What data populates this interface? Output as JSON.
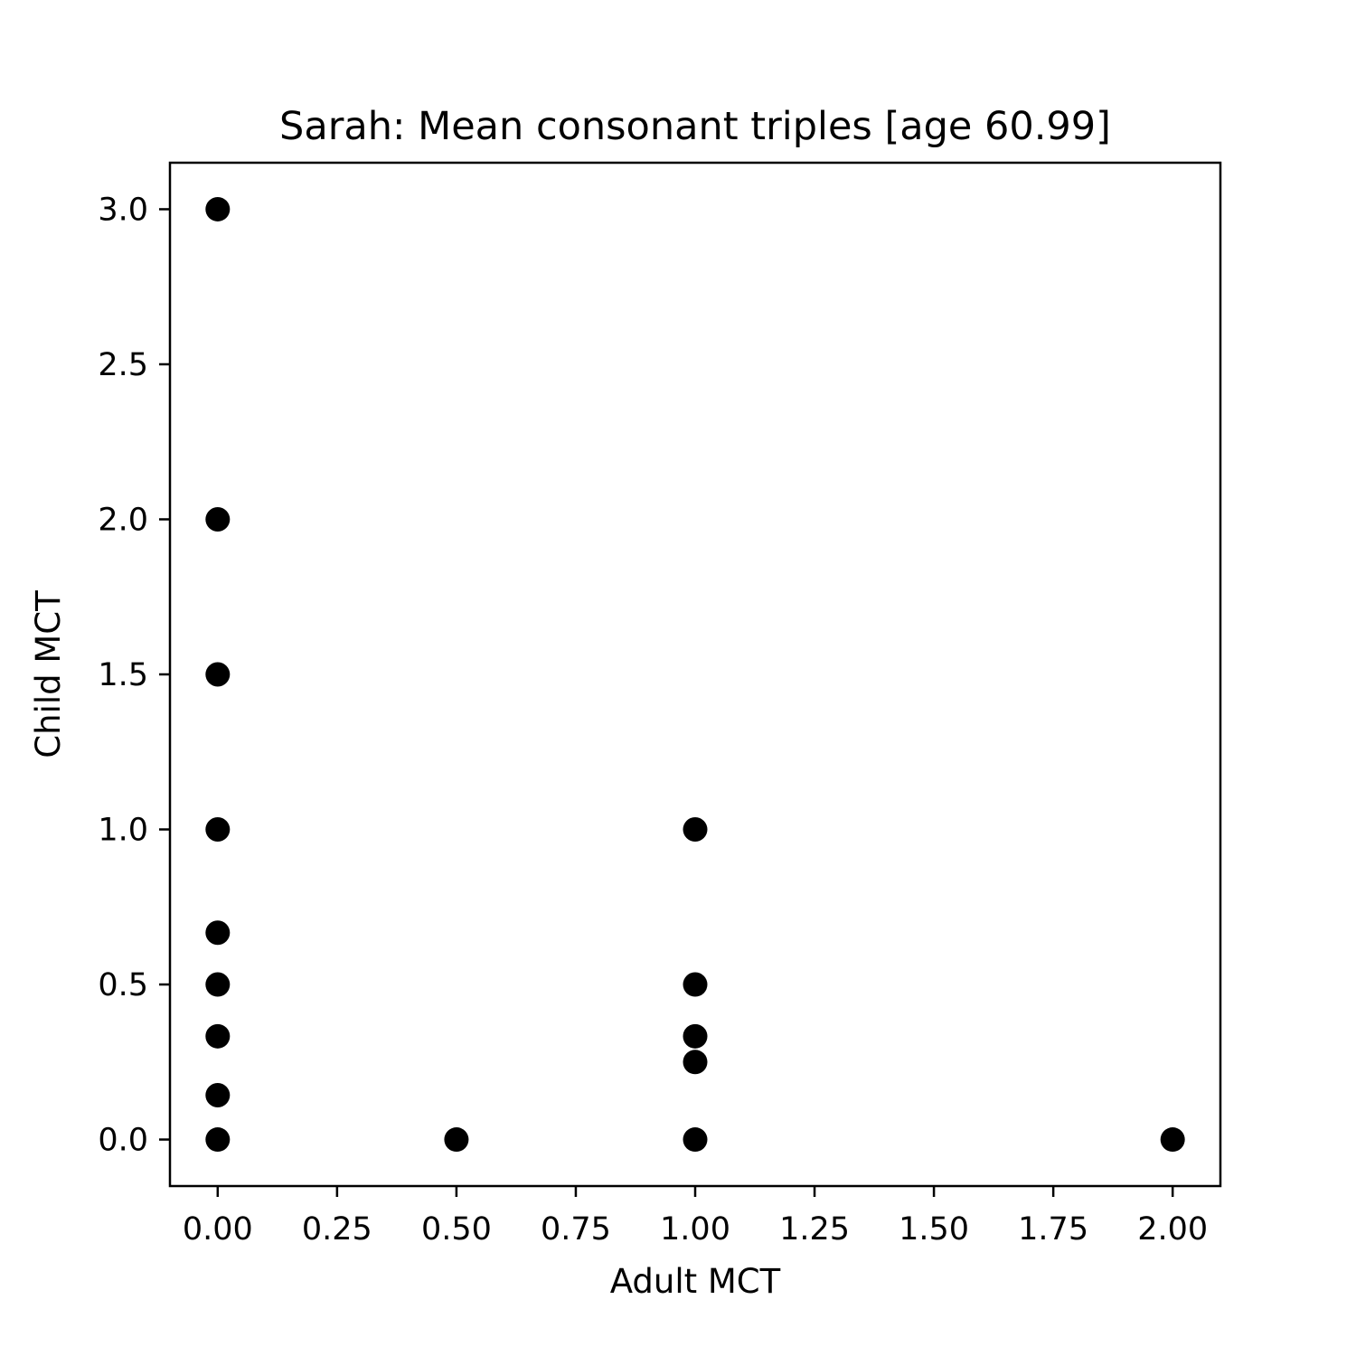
{
  "chart_data": {
    "type": "scatter",
    "title": "Sarah: Mean consonant triples [age 60.99]",
    "xlabel": "Adult MCT",
    "ylabel": "Child MCT",
    "xlim": [
      -0.1,
      2.1
    ],
    "ylim": [
      -0.15,
      3.15
    ],
    "x_ticks": [
      "0.00",
      "0.25",
      "0.50",
      "0.75",
      "1.00",
      "1.25",
      "1.50",
      "1.75",
      "2.00"
    ],
    "y_ticks": [
      "0.0",
      "0.5",
      "1.0",
      "1.5",
      "2.0",
      "2.5",
      "3.0"
    ],
    "grid": false,
    "marker_color": "#000000",
    "points": [
      {
        "x": 0,
        "y": 3.0
      },
      {
        "x": 0,
        "y": 2.0
      },
      {
        "x": 0,
        "y": 1.5
      },
      {
        "x": 0,
        "y": 1.0
      },
      {
        "x": 0,
        "y": 0.667
      },
      {
        "x": 0,
        "y": 0.5
      },
      {
        "x": 0,
        "y": 0.333
      },
      {
        "x": 0,
        "y": 0.143
      },
      {
        "x": 0,
        "y": 0.0
      },
      {
        "x": 0.5,
        "y": 0.0
      },
      {
        "x": 1.0,
        "y": 1.0
      },
      {
        "x": 1.0,
        "y": 0.5
      },
      {
        "x": 1.0,
        "y": 0.333
      },
      {
        "x": 1.0,
        "y": 0.25
      },
      {
        "x": 1.0,
        "y": 0.0
      },
      {
        "x": 2.0,
        "y": 0.0
      }
    ]
  }
}
